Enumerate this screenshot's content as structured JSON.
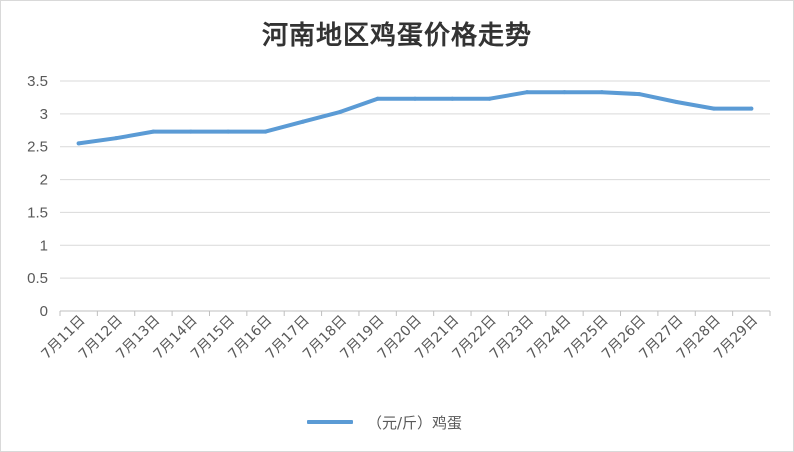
{
  "chart_data": {
    "type": "line",
    "title": "河南地区鸡蛋价格走势",
    "xlabel": "",
    "ylabel": "",
    "categories": [
      "7月11日",
      "7月12日",
      "7月13日",
      "7月14日",
      "7月15日",
      "7月16日",
      "7月17日",
      "7月18日",
      "7月19日",
      "7月20日",
      "7月21日",
      "7月22日",
      "7月23日",
      "7月24日",
      "7月25日",
      "7月26日",
      "7月27日",
      "7月28日",
      "7月29日"
    ],
    "yticks": [
      "0",
      "0.5",
      "1",
      "1.5",
      "2",
      "2.5",
      "3",
      "3.5"
    ],
    "ylim": [
      0,
      3.5
    ],
    "grid": true,
    "legend_position": "bottom",
    "series": [
      {
        "name": "（元/斤）鸡蛋",
        "color": "#5b9bd5",
        "values": [
          2.55,
          2.63,
          2.73,
          2.73,
          2.73,
          2.73,
          2.88,
          3.03,
          3.23,
          3.23,
          3.23,
          3.23,
          3.33,
          3.33,
          3.33,
          3.3,
          3.18,
          3.08,
          3.08
        ]
      }
    ]
  }
}
